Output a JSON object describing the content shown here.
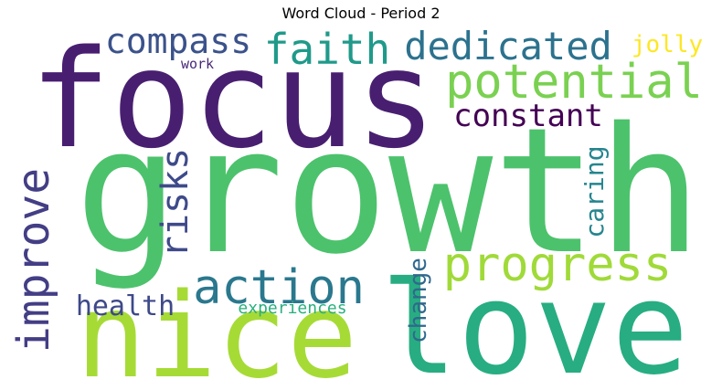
{
  "chart_data": {
    "type": "wordcloud",
    "title": "Word Cloud - Period 2",
    "words": [
      {
        "text": "growth",
        "size": 1.0,
        "color": "#4cc26c"
      },
      {
        "text": "focus",
        "size": 0.82,
        "color": "#481f70"
      },
      {
        "text": "love",
        "size": 0.78,
        "color": "#27ad81"
      },
      {
        "text": "nice",
        "size": 0.7,
        "color": "#a6db36"
      },
      {
        "text": "progress",
        "size": 0.3,
        "color": "#a0da39"
      },
      {
        "text": "potential",
        "size": 0.3,
        "color": "#7ad151"
      },
      {
        "text": "action",
        "size": 0.3,
        "color": "#2a788e"
      },
      {
        "text": "improve",
        "size": 0.28,
        "color": "#433e85"
      },
      {
        "text": "faith",
        "size": 0.26,
        "color": "#1f9a8a"
      },
      {
        "text": "dedicated",
        "size": 0.24,
        "color": "#2c728e"
      },
      {
        "text": "risks",
        "size": 0.22,
        "color": "#3e4a89"
      },
      {
        "text": "compass",
        "size": 0.22,
        "color": "#3b528b"
      },
      {
        "text": "constant",
        "size": 0.2,
        "color": "#440154"
      },
      {
        "text": "health",
        "size": 0.17,
        "color": "#3e4989"
      },
      {
        "text": "caring",
        "size": 0.16,
        "color": "#25858e"
      },
      {
        "text": "change",
        "size": 0.15,
        "color": "#31688e"
      },
      {
        "text": "jolly",
        "size": 0.15,
        "color": "#fde725"
      },
      {
        "text": "experiences",
        "size": 0.1,
        "color": "#29af7f"
      },
      {
        "text": "work",
        "size": 0.08,
        "color": "#482878"
      }
    ]
  }
}
